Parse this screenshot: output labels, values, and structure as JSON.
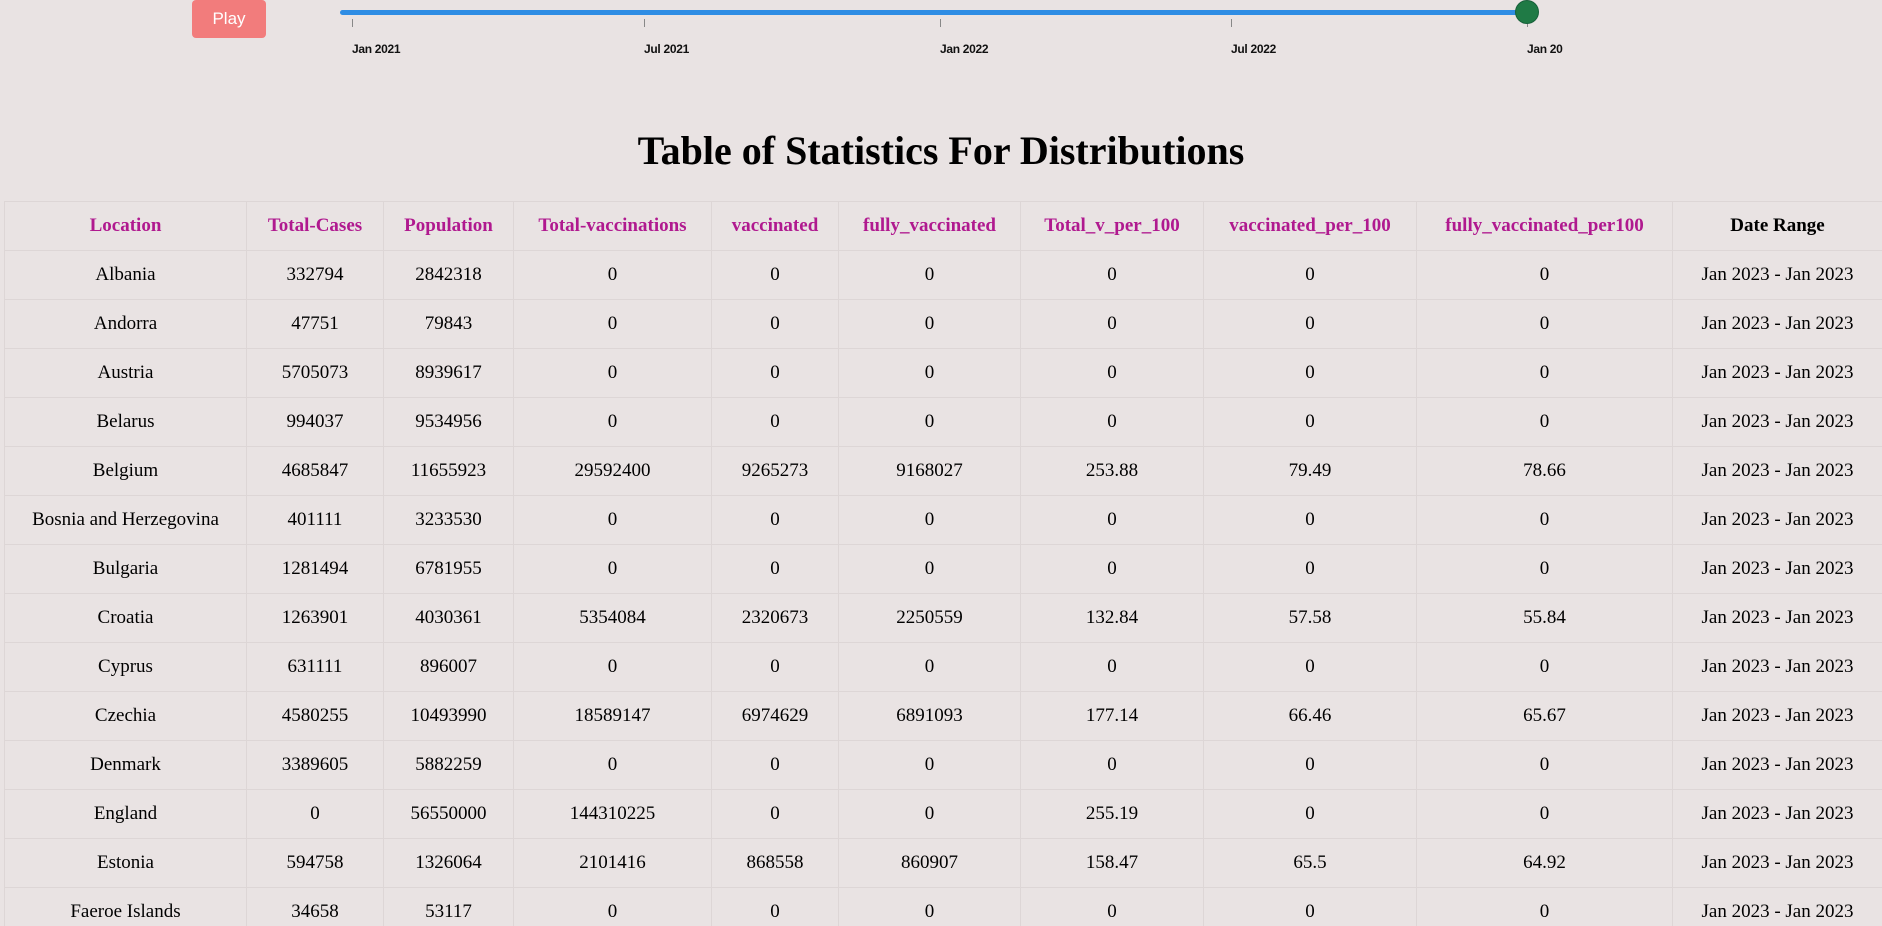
{
  "controls": {
    "play_label": "Play",
    "timeline": {
      "ticks": [
        "Jan 2021",
        "Jul 2021",
        "Jan 2022",
        "Jul 2022",
        "Jan 20"
      ],
      "position": 1.0
    }
  },
  "title": "Table of Statistics For Distributions",
  "colors": {
    "background": "#e9e3e3",
    "header_text": "#b0198f",
    "play_button": "#f27c7c",
    "timeline_track": "#2f8de4",
    "timeline_handle": "#1f7a45"
  },
  "table": {
    "columns": [
      "Location",
      "Total-Cases",
      "Population",
      "Total-vaccinations",
      "vaccinated",
      "fully_vaccinated",
      "Total_v_per_100",
      "vaccinated_per_100",
      "fully_vaccinated_per100",
      "Date Range"
    ],
    "rows": [
      [
        "Albania",
        "332794",
        "2842318",
        "0",
        "0",
        "0",
        "0",
        "0",
        "0",
        "Jan 2023 - Jan 2023"
      ],
      [
        "Andorra",
        "47751",
        "79843",
        "0",
        "0",
        "0",
        "0",
        "0",
        "0",
        "Jan 2023 - Jan 2023"
      ],
      [
        "Austria",
        "5705073",
        "8939617",
        "0",
        "0",
        "0",
        "0",
        "0",
        "0",
        "Jan 2023 - Jan 2023"
      ],
      [
        "Belarus",
        "994037",
        "9534956",
        "0",
        "0",
        "0",
        "0",
        "0",
        "0",
        "Jan 2023 - Jan 2023"
      ],
      [
        "Belgium",
        "4685847",
        "11655923",
        "29592400",
        "9265273",
        "9168027",
        "253.88",
        "79.49",
        "78.66",
        "Jan 2023 - Jan 2023"
      ],
      [
        "Bosnia and Herzegovina",
        "401111",
        "3233530",
        "0",
        "0",
        "0",
        "0",
        "0",
        "0",
        "Jan 2023 - Jan 2023"
      ],
      [
        "Bulgaria",
        "1281494",
        "6781955",
        "0",
        "0",
        "0",
        "0",
        "0",
        "0",
        "Jan 2023 - Jan 2023"
      ],
      [
        "Croatia",
        "1263901",
        "4030361",
        "5354084",
        "2320673",
        "2250559",
        "132.84",
        "57.58",
        "55.84",
        "Jan 2023 - Jan 2023"
      ],
      [
        "Cyprus",
        "631111",
        "896007",
        "0",
        "0",
        "0",
        "0",
        "0",
        "0",
        "Jan 2023 - Jan 2023"
      ],
      [
        "Czechia",
        "4580255",
        "10493990",
        "18589147",
        "6974629",
        "6891093",
        "177.14",
        "66.46",
        "65.67",
        "Jan 2023 - Jan 2023"
      ],
      [
        "Denmark",
        "3389605",
        "5882259",
        "0",
        "0",
        "0",
        "0",
        "0",
        "0",
        "Jan 2023 - Jan 2023"
      ],
      [
        "England",
        "0",
        "56550000",
        "144310225",
        "0",
        "0",
        "255.19",
        "0",
        "0",
        "Jan 2023 - Jan 2023"
      ],
      [
        "Estonia",
        "594758",
        "1326064",
        "2101416",
        "868558",
        "860907",
        "158.47",
        "65.5",
        "64.92",
        "Jan 2023 - Jan 2023"
      ],
      [
        "Faeroe Islands",
        "34658",
        "53117",
        "0",
        "0",
        "0",
        "0",
        "0",
        "0",
        "Jan 2023 - Jan 2023"
      ]
    ]
  }
}
